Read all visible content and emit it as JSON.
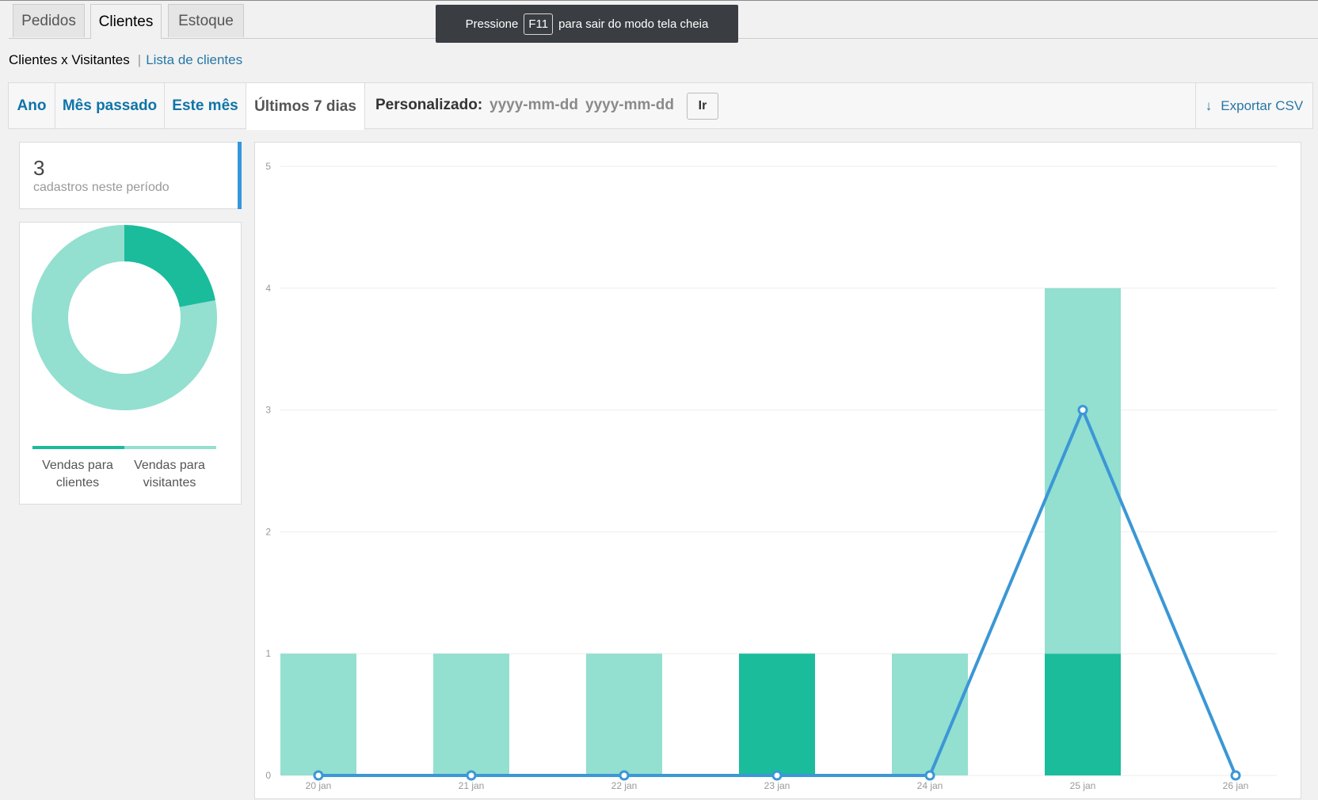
{
  "nav_tabs": [
    "Pedidos",
    "Clientes",
    "Estoque"
  ],
  "fullscreen_notice": {
    "before": "Pressione",
    "key": "F11",
    "after": "para sair do modo tela cheia"
  },
  "subnav": {
    "current": "Clientes x Visitantes",
    "separator": "|",
    "link": "Lista de clientes"
  },
  "ranges": [
    "Ano",
    "Mês passado",
    "Este mês",
    "Últimos 7 dias"
  ],
  "custom": {
    "label": "Personalizado:",
    "start_placeholder": "yyyy-mm-dd",
    "end_placeholder": "yyyy-mm-dd",
    "go_label": "Ir"
  },
  "export": {
    "label": "Exportar CSV",
    "icon": "download-arrow-icon"
  },
  "summary": {
    "count": "3",
    "label": "cadastros neste período"
  },
  "pie": {
    "legend": [
      "Vendas para clientes",
      "Vendas para visitantes"
    ],
    "colors": [
      "#1abc9c",
      "#93dfd0"
    ],
    "share_clientes": 0.22,
    "share_visitantes": 0.78
  },
  "chart_data": {
    "type": "bar",
    "categories": [
      "20 jan",
      "21 jan",
      "22 jan",
      "23 jan",
      "24 jan",
      "25 jan",
      "26 jan"
    ],
    "series": [
      {
        "values": [
          0,
          0,
          0,
          1,
          0,
          1,
          0
        ],
        "color": "#1abc9c"
      },
      {
        "values": [
          1,
          1,
          1,
          0,
          1,
          3,
          0
        ],
        "color": "#93dfd0"
      },
      {
        "values": [
          0,
          0,
          0,
          0,
          0,
          3,
          0
        ],
        "color": "#3b97d6",
        "kind": "line"
      }
    ],
    "stacked": true,
    "ylim": [
      0,
      5
    ],
    "yticks": [
      0,
      1,
      2,
      3,
      4,
      5
    ],
    "grid": true
  }
}
